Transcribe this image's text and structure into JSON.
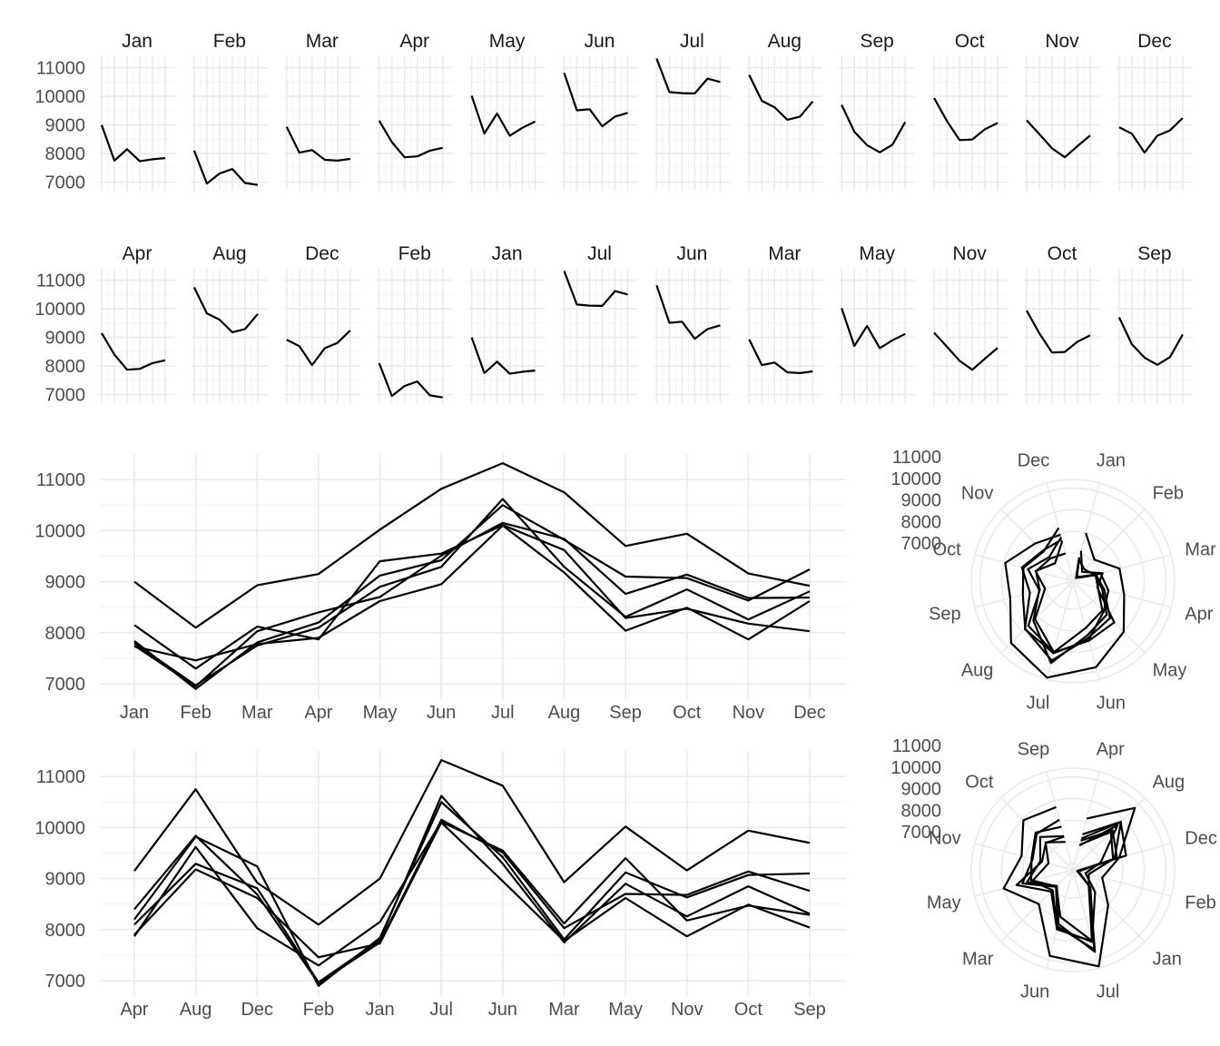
{
  "chart_data": [
    {
      "type": "line",
      "panel": "faceted-by-month-calendar-order",
      "facets": [
        {
          "label": "Jan",
          "values": [
            9000,
            7750,
            8150,
            7730,
            7800,
            7840
          ]
        },
        {
          "label": "Feb",
          "values": [
            8100,
            6950,
            7300,
            7460,
            6970,
            6900
          ]
        },
        {
          "label": "Mar",
          "values": [
            8930,
            8030,
            8120,
            7780,
            7750,
            7810
          ]
        },
        {
          "label": "Apr",
          "values": [
            9150,
            8400,
            7870,
            7900,
            8100,
            8200
          ]
        },
        {
          "label": "May",
          "values": [
            10020,
            8700,
            9400,
            8620,
            8900,
            9120
          ]
        },
        {
          "label": "Jun",
          "values": [
            10820,
            9510,
            9550,
            8950,
            9290,
            9420
          ]
        },
        {
          "label": "Jul",
          "values": [
            11320,
            10150,
            10110,
            10100,
            10620,
            10500
          ]
        },
        {
          "label": "Aug",
          "values": [
            10750,
            9840,
            9620,
            9180,
            9290,
            9820
          ]
        },
        {
          "label": "Sep",
          "values": [
            9700,
            8760,
            8290,
            8040,
            8310,
            9100
          ]
        },
        {
          "label": "Oct",
          "values": [
            9940,
            9140,
            8470,
            8490,
            8850,
            9070
          ]
        },
        {
          "label": "Nov",
          "values": [
            9160,
            8680,
            8180,
            7870,
            8260,
            8630
          ]
        },
        {
          "label": "Dec",
          "values": [
            8920,
            8690,
            8030,
            8620,
            8810,
            9240
          ]
        }
      ],
      "ylim": [
        6700,
        11400
      ],
      "yticks": [
        7000,
        8000,
        9000,
        10000,
        11000
      ],
      "grid": true
    },
    {
      "type": "line",
      "panel": "faceted-by-month-alphabetical-order",
      "facets": [
        {
          "label": "Apr",
          "values": [
            9150,
            8400,
            7870,
            7900,
            8100,
            8200
          ]
        },
        {
          "label": "Aug",
          "values": [
            10750,
            9840,
            9620,
            9180,
            9290,
            9820
          ]
        },
        {
          "label": "Dec",
          "values": [
            8920,
            8690,
            8030,
            8620,
            8810,
            9240
          ]
        },
        {
          "label": "Feb",
          "values": [
            8100,
            6950,
            7300,
            7460,
            6970,
            6900
          ]
        },
        {
          "label": "Jan",
          "values": [
            9000,
            7750,
            8150,
            7730,
            7800,
            7840
          ]
        },
        {
          "label": "Jul",
          "values": [
            11320,
            10150,
            10110,
            10100,
            10620,
            10500
          ]
        },
        {
          "label": "Jun",
          "values": [
            10820,
            9510,
            9550,
            8950,
            9290,
            9420
          ]
        },
        {
          "label": "Mar",
          "values": [
            8930,
            8030,
            8120,
            7780,
            7750,
            7810
          ]
        },
        {
          "label": "May",
          "values": [
            10020,
            8700,
            9400,
            8620,
            8900,
            9120
          ]
        },
        {
          "label": "Nov",
          "values": [
            9160,
            8680,
            8180,
            7870,
            8260,
            8630
          ]
        },
        {
          "label": "Oct",
          "values": [
            9940,
            9140,
            8470,
            8490,
            8850,
            9070
          ]
        },
        {
          "label": "Sep",
          "values": [
            9700,
            8760,
            8290,
            8040,
            8310,
            9100
          ]
        }
      ],
      "ylim": [
        6700,
        11400
      ],
      "yticks": [
        7000,
        8000,
        9000,
        10000,
        11000
      ],
      "grid": true
    },
    {
      "type": "line",
      "panel": "seasonal-calendar-order",
      "categories": [
        "Jan",
        "Feb",
        "Mar",
        "Apr",
        "May",
        "Jun",
        "Jul",
        "Aug",
        "Sep",
        "Oct",
        "Nov",
        "Dec"
      ],
      "series": [
        {
          "values": [
            9000,
            8100,
            8930,
            9150,
            10020,
            10820,
            11320,
            10750,
            9700,
            9940,
            9160,
            8920
          ]
        },
        {
          "values": [
            7750,
            6950,
            8030,
            8400,
            8700,
            9510,
            10150,
            9840,
            8760,
            9140,
            8680,
            8690
          ]
        },
        {
          "values": [
            8150,
            7300,
            8120,
            7870,
            9400,
            9550,
            10110,
            9620,
            8290,
            8470,
            8180,
            8030
          ]
        },
        {
          "values": [
            7730,
            7460,
            7780,
            7900,
            8620,
            8950,
            10100,
            9180,
            8040,
            8490,
            7870,
            8620
          ]
        },
        {
          "values": [
            7800,
            6970,
            7750,
            8100,
            8900,
            9290,
            10620,
            9290,
            8310,
            8850,
            8260,
            8810
          ]
        },
        {
          "values": [
            7840,
            6900,
            7810,
            8200,
            9120,
            9420,
            10500,
            9820,
            9100,
            9070,
            8630,
            9240
          ]
        }
      ],
      "ylim": [
        6700,
        11500
      ],
      "yticks": [
        7000,
        8000,
        9000,
        10000,
        11000
      ],
      "grid": true
    },
    {
      "type": "line",
      "panel": "seasonal-calendar-order-polar",
      "categories": [
        "Jan",
        "Feb",
        "Mar",
        "Apr",
        "May",
        "Jun",
        "Jul",
        "Aug",
        "Sep",
        "Oct",
        "Nov",
        "Dec"
      ],
      "radial_ticks": [
        7000,
        8000,
        9000,
        10000,
        11000
      ],
      "grid": true
    },
    {
      "type": "line",
      "panel": "seasonal-alphabetical-order",
      "categories": [
        "Apr",
        "Aug",
        "Dec",
        "Feb",
        "Jan",
        "Jul",
        "Jun",
        "Mar",
        "May",
        "Nov",
        "Oct",
        "Sep"
      ],
      "ylim": [
        6700,
        11500
      ],
      "yticks": [
        7000,
        8000,
        9000,
        10000,
        11000
      ],
      "grid": true
    },
    {
      "type": "line",
      "panel": "seasonal-alphabetical-order-polar",
      "categories": [
        "Apr",
        "Aug",
        "Dec",
        "Feb",
        "Jan",
        "Jul",
        "Jun",
        "Mar",
        "May",
        "Nov",
        "Oct",
        "Sep"
      ],
      "radial_ticks": [
        7000,
        8000,
        9000,
        10000,
        11000
      ],
      "grid": true
    }
  ]
}
